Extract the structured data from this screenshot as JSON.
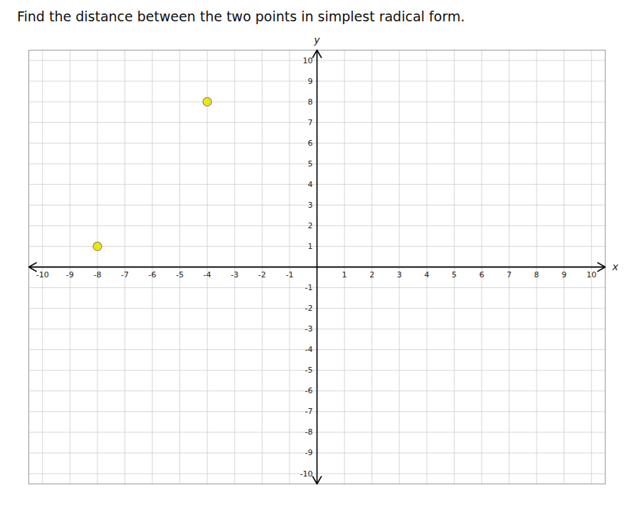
{
  "chart_data": {
    "type": "scatter",
    "title": "Find the distance between the two points in simplest radical form.",
    "x": [
      -4,
      -8
    ],
    "values": [
      8,
      1
    ],
    "color": "#f0e800",
    "xlabel": "x",
    "ylabel": "y",
    "xlim": [
      -10.5,
      10.5
    ],
    "ylim": [
      -10.5,
      10.5
    ],
    "xticks": [
      -10,
      -9,
      -8,
      -7,
      -6,
      -5,
      -4,
      -3,
      -2,
      -1,
      1,
      2,
      3,
      4,
      5,
      6,
      7,
      8,
      9,
      10
    ],
    "yticks": [
      -10,
      -9,
      -8,
      -7,
      -6,
      -5,
      -4,
      -3,
      -2,
      -1,
      1,
      2,
      3,
      4,
      5,
      6,
      7,
      8,
      9,
      10
    ],
    "grid": true
  }
}
